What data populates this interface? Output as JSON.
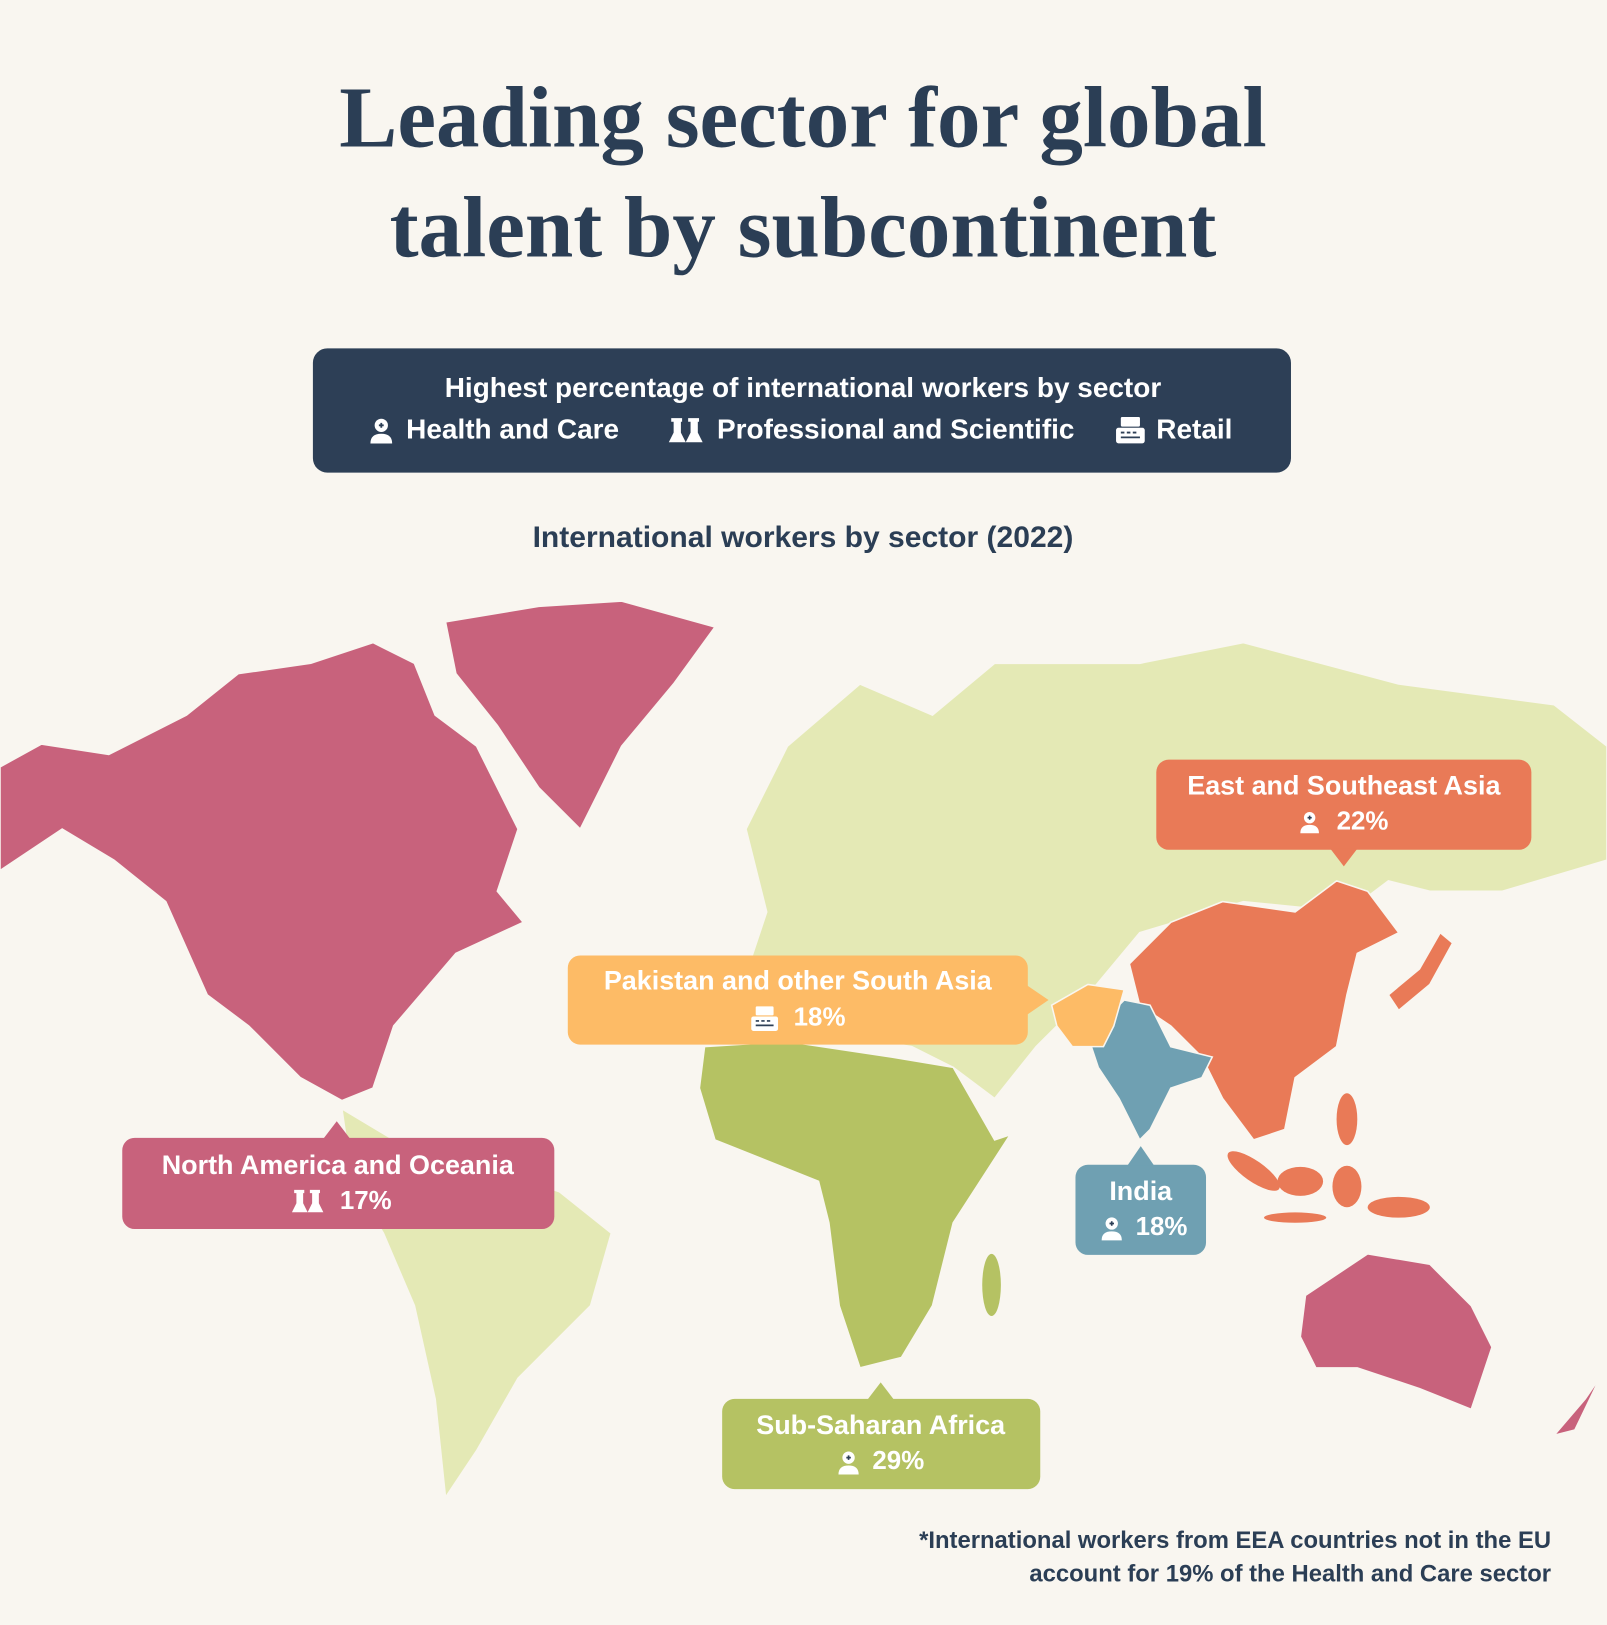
{
  "title_lines": [
    "Leading sector for global",
    "talent by subcontinent"
  ],
  "legend": {
    "heading": "Highest percentage of international workers by sector",
    "sectors": [
      "Health and Care",
      "Professional and Scientific",
      "Retail"
    ]
  },
  "subtitle": "International workers by sector (2022)",
  "regions": [
    {
      "name": "East and Southeast Asia",
      "percent": "22%"
    },
    {
      "name": "Pakistan and other South Asia",
      "percent": "18%"
    },
    {
      "name": "North America and Oceania",
      "percent": "17%"
    },
    {
      "name": "India",
      "percent": "18%"
    },
    {
      "name": "Sub-Saharan Africa",
      "percent": "29%"
    }
  ],
  "footnote_lines": [
    "*International workers from EEA countries not in the EU",
    "account for 19% of the Health and Care sector"
  ]
}
